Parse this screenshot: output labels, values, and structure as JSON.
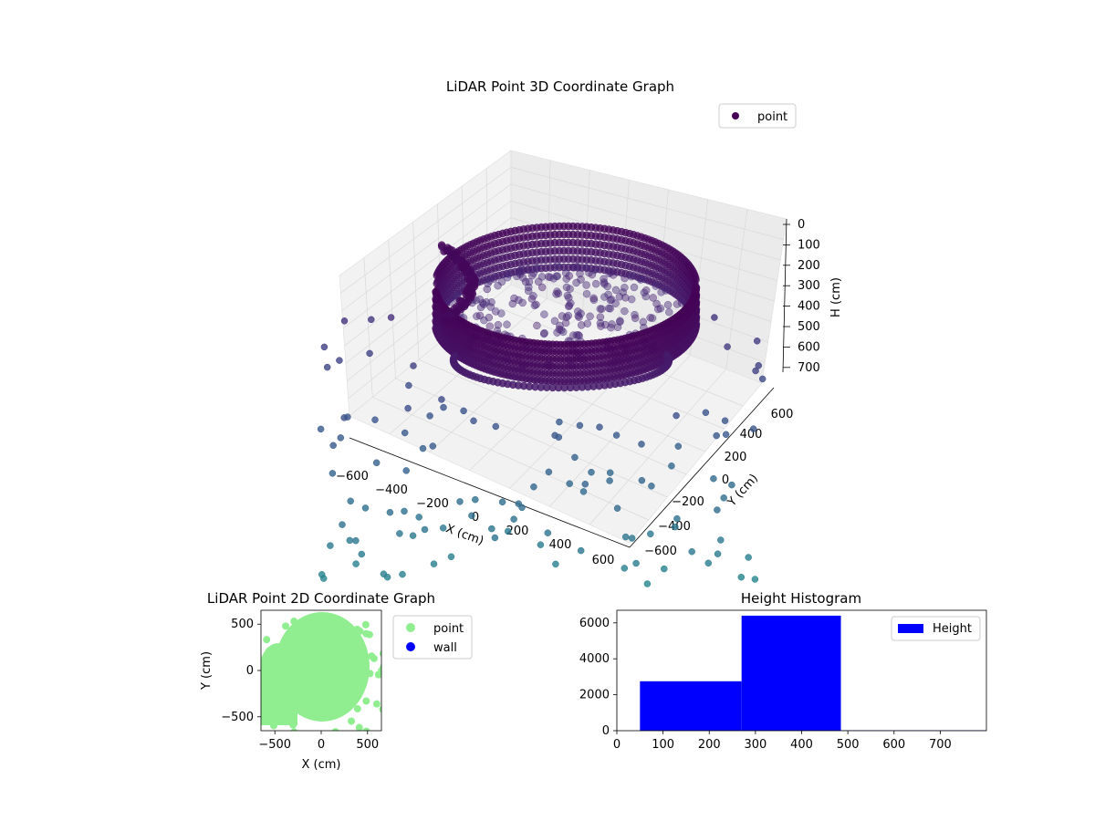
{
  "chart_data": [
    {
      "type": "scatter3d",
      "title": "LiDAR Point 3D Coordinate Graph",
      "xlabel": "X (cm)",
      "ylabel": "Y (cm)",
      "zlabel": "H (cm)",
      "x_ticks": [
        "−600",
        "−400",
        "−200",
        "0",
        "200",
        "400",
        "600"
      ],
      "y_ticks": [
        "−600",
        "−400",
        "−200",
        "0",
        "200",
        "400",
        "600"
      ],
      "z_ticks": [
        "0",
        "100",
        "200",
        "300",
        "400",
        "500",
        "600",
        "700"
      ],
      "xlim": [
        -650,
        650
      ],
      "ylim": [
        -650,
        650
      ],
      "zlim": [
        0,
        780
      ],
      "z_inverted": true,
      "legend": {
        "label": "point",
        "placement": "top-right",
        "color": "#440154"
      },
      "colormap": "viridis",
      "grid": true
    },
    {
      "type": "scatter",
      "title": "LiDAR Point 2D Coordinate Graph",
      "xlabel": "X (cm)",
      "ylabel": "Y (cm)",
      "x_ticks": [
        "−500",
        "0",
        "500"
      ],
      "y_ticks": [
        "500",
        "0",
        "−500"
      ],
      "xlim": [
        -650,
        650
      ],
      "ylim": [
        -650,
        650
      ],
      "series": [
        {
          "name": "point",
          "color": "#90ee90"
        },
        {
          "name": "wall",
          "color": "#0000ff"
        }
      ],
      "legend_placement": "outside-right"
    },
    {
      "type": "bar",
      "title": "Height Histogram",
      "x_ticks": [
        "0",
        "100",
        "200",
        "300",
        "400",
        "500",
        "600",
        "700"
      ],
      "y_ticks": [
        "0",
        "2000",
        "4000",
        "6000"
      ],
      "xlim": [
        0,
        800
      ],
      "ylim": [
        0,
        6700
      ],
      "bins": [
        {
          "from": 50,
          "to": 270,
          "count": 2750
        },
        {
          "from": 270,
          "to": 485,
          "count": 6400
        },
        {
          "from": 485,
          "to": 800,
          "count": 20
        }
      ],
      "series": [
        {
          "name": "Height",
          "color": "#0000ff"
        }
      ],
      "legend_placement": "top-right"
    }
  ]
}
